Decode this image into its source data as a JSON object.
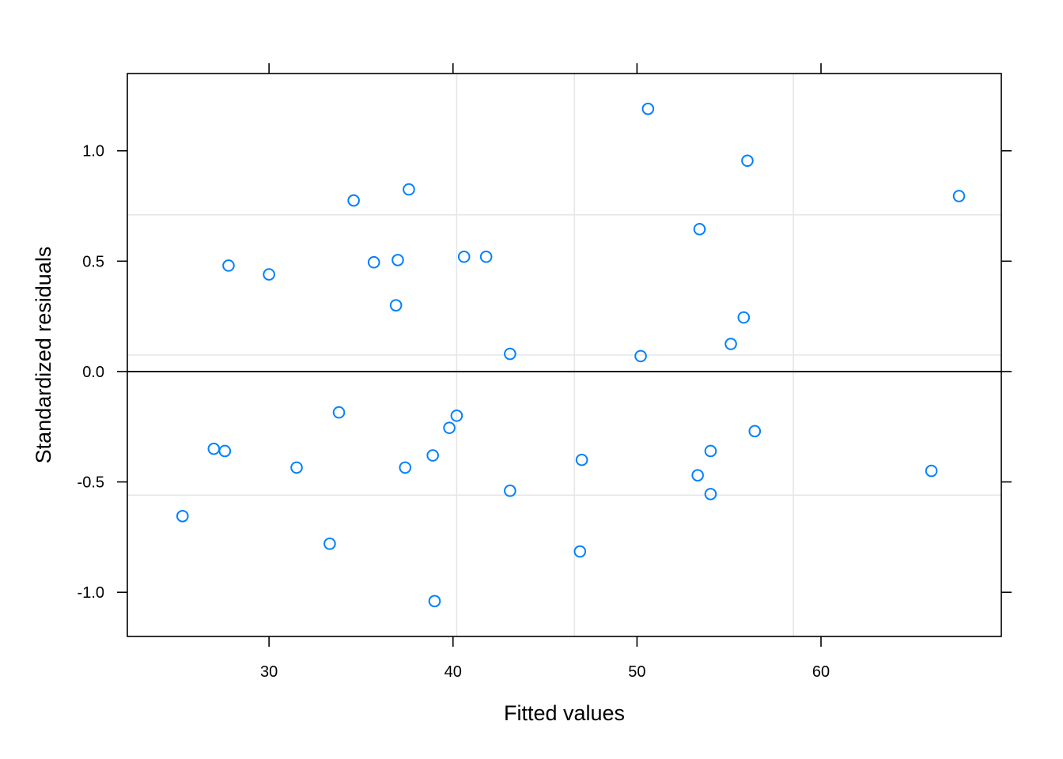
{
  "chart_data": {
    "type": "scatter",
    "title": "",
    "xlabel": "Fitted values",
    "ylabel": "Standardized residuals",
    "xlim": [
      22.3,
      69.8
    ],
    "ylim": [
      -1.2,
      1.35
    ],
    "x_ticks": [
      30,
      40,
      50,
      60
    ],
    "x_tick_labels": [
      "30",
      "40",
      "50",
      "60"
    ],
    "y_ticks": [
      -1.0,
      -0.5,
      0.0,
      0.5,
      1.0
    ],
    "y_tick_labels": [
      "-1.0",
      "-0.5",
      "0.0",
      "0.5",
      "1.0"
    ],
    "reference_line_y": 0.0,
    "grid": true,
    "grid_x": [
      40.2,
      46.6,
      58.5
    ],
    "grid_y": [
      -0.56,
      0.075,
      0.71
    ],
    "point_color": "#0080ff",
    "points": [
      {
        "x": 25.3,
        "y": -0.655
      },
      {
        "x": 27.0,
        "y": -0.35
      },
      {
        "x": 27.6,
        "y": -0.36
      },
      {
        "x": 27.8,
        "y": 0.48
      },
      {
        "x": 30.0,
        "y": 0.44
      },
      {
        "x": 31.5,
        "y": -0.435
      },
      {
        "x": 33.3,
        "y": -0.78
      },
      {
        "x": 33.8,
        "y": -0.185
      },
      {
        "x": 34.6,
        "y": 0.775
      },
      {
        "x": 35.7,
        "y": 0.495
      },
      {
        "x": 36.9,
        "y": 0.3
      },
      {
        "x": 37.0,
        "y": 0.505
      },
      {
        "x": 37.4,
        "y": -0.435
      },
      {
        "x": 37.6,
        "y": 0.825
      },
      {
        "x": 38.9,
        "y": -0.38
      },
      {
        "x": 39.0,
        "y": -1.04
      },
      {
        "x": 39.8,
        "y": -0.255
      },
      {
        "x": 40.2,
        "y": -0.2
      },
      {
        "x": 40.6,
        "y": 0.52
      },
      {
        "x": 41.8,
        "y": 0.52
      },
      {
        "x": 43.1,
        "y": 0.08
      },
      {
        "x": 43.1,
        "y": -0.54
      },
      {
        "x": 46.9,
        "y": -0.815
      },
      {
        "x": 47.0,
        "y": -0.4
      },
      {
        "x": 50.2,
        "y": 0.07
      },
      {
        "x": 50.6,
        "y": 1.19
      },
      {
        "x": 53.3,
        "y": -0.47
      },
      {
        "x": 53.4,
        "y": 0.645
      },
      {
        "x": 54.0,
        "y": -0.555
      },
      {
        "x": 54.0,
        "y": -0.36
      },
      {
        "x": 55.1,
        "y": 0.125
      },
      {
        "x": 55.8,
        "y": 0.245
      },
      {
        "x": 56.0,
        "y": 0.955
      },
      {
        "x": 56.4,
        "y": -0.27
      },
      {
        "x": 66.0,
        "y": -0.45
      },
      {
        "x": 67.5,
        "y": 0.795
      }
    ]
  }
}
